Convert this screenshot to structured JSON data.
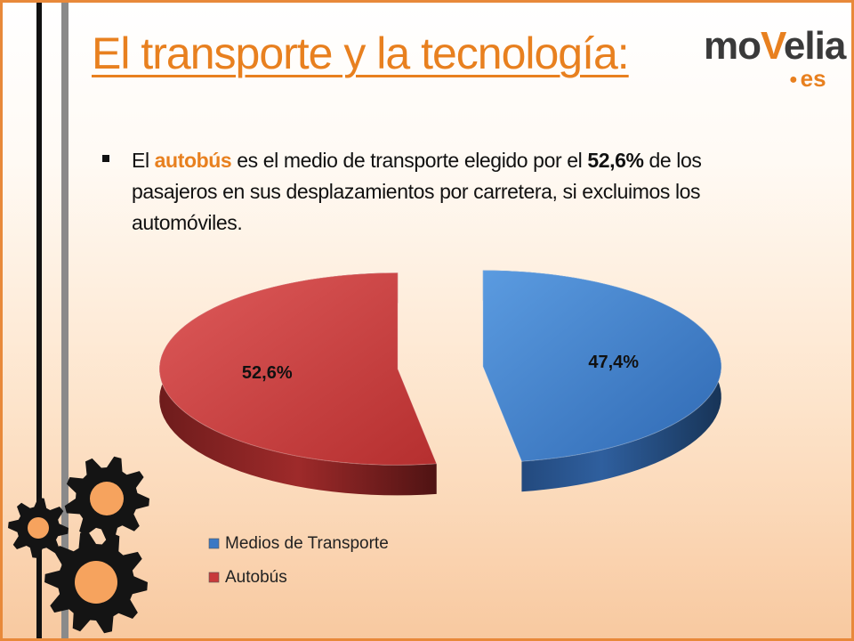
{
  "slide": {
    "title": "El transporte y la tecnología:",
    "logo": {
      "word_left": "mo",
      "word_accent": "V",
      "word_right": "elia",
      "suffix": "es"
    },
    "bullet": {
      "part1": "El ",
      "highlight1": "autobús",
      "part2": " es el medio de transporte elegido por el ",
      "highlight2": "52,6%",
      "part3": " de los pasajeros en sus desplazamientos por carretera, si excluimos los automóviles."
    }
  },
  "chart_data": {
    "type": "pie",
    "title": "",
    "slices": [
      {
        "name": "Medios de Transporte",
        "value": 47.4,
        "label": "47,4%",
        "color": "#3a78c4"
      },
      {
        "name": "Autobús",
        "value": 52.6,
        "label": "52,6%",
        "color": "#c83a3a"
      }
    ],
    "legend_position": "bottom",
    "exploded": true,
    "three_d": true
  },
  "colors": {
    "accent": "#e8801f",
    "border": "#e8893a"
  },
  "icons": [
    "gear-icon-small",
    "gear-icon-top",
    "gear-icon-large"
  ]
}
